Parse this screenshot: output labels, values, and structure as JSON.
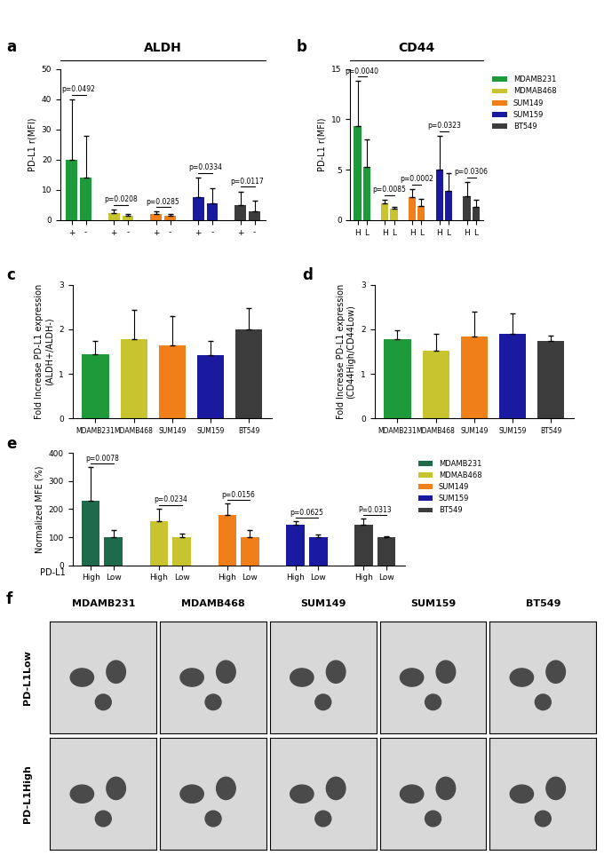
{
  "chart_data": [
    {
      "type": "bar",
      "panel": "a",
      "title": "ALDH",
      "y_label": "PD-L1 r(MFI)",
      "categories": [
        "+",
        "-"
      ],
      "series": [
        {
          "color": "#1f9a3a",
          "values": [
            20,
            14
          ],
          "errors": [
            20,
            14
          ]
        },
        {
          "color": "#c8c430",
          "values": [
            2.2,
            1.3
          ],
          "errors": [
            1.2,
            0.8
          ]
        },
        {
          "color": "#f07f1a",
          "values": [
            2.0,
            1.3
          ],
          "errors": [
            0.8,
            0.6
          ]
        },
        {
          "color": "#1a1aa0",
          "values": [
            7.5,
            5.5
          ],
          "errors": [
            6.5,
            5
          ]
        },
        {
          "color": "#3c3c3c",
          "values": [
            5,
            3
          ],
          "errors": [
            4.5,
            3.5
          ]
        }
      ],
      "annotations": [
        "p=0.0492",
        "p=0.0208",
        "p=0.0285",
        "p=0.0334",
        "p=0.0117"
      ],
      "ylim": [
        0,
        50
      ],
      "yticks": [
        0,
        10,
        20,
        30,
        40,
        50
      ]
    },
    {
      "type": "bar",
      "panel": "b",
      "title": "CD44",
      "y_label": "PD-L1 r(MFI)",
      "categories": [
        "H",
        "L"
      ],
      "series": [
        {
          "name": "MDAMB231",
          "color": "#1f9a3a",
          "values": [
            9.3,
            5.3
          ],
          "errors": [
            4.5,
            2.7
          ]
        },
        {
          "name": "MDMAB468",
          "color": "#c8c430",
          "values": [
            1.7,
            1.1
          ],
          "errors": [
            0.3,
            0.2
          ]
        },
        {
          "name": "SUM149",
          "color": "#f07f1a",
          "values": [
            2.3,
            1.4
          ],
          "errors": [
            0.8,
            0.7
          ]
        },
        {
          "name": "SUM159",
          "color": "#1a1aa0",
          "values": [
            5,
            2.9
          ],
          "errors": [
            3.4,
            1.8
          ]
        },
        {
          "name": "BT549",
          "color": "#3c3c3c",
          "values": [
            2.4,
            1.3
          ],
          "errors": [
            1.4,
            0.7
          ]
        }
      ],
      "annotations": [
        "p=0.0040",
        "p=0.0085",
        "p=0.0002",
        "p=0.0323",
        "p=0.0306"
      ],
      "legend": "upper left",
      "ylim": [
        0,
        15
      ],
      "yticks": [
        0,
        5,
        10,
        15
      ]
    },
    {
      "type": "bar",
      "panel": "c",
      "y_label": "Fold Increase PD-L1 expression\n(ALDH+/ALDH-)",
      "categories": [
        "MDAMB231",
        "MDAMB468",
        "SUM149",
        "SUM159",
        "BT549"
      ],
      "values": [
        1.45,
        1.78,
        1.65,
        1.42,
        2.0
      ],
      "errors": [
        0.3,
        0.65,
        0.65,
        0.32,
        0.48
      ],
      "colors": [
        "#1f9a3a",
        "#c8c430",
        "#f07f1a",
        "#1a1aa0",
        "#3c3c3c"
      ],
      "ylim": [
        0,
        3
      ],
      "yticks": [
        0,
        1,
        2,
        3
      ]
    },
    {
      "type": "bar",
      "panel": "d",
      "y_label": "Fold Increase PD-L1 expression\n(CD44High/CD44Low)",
      "categories": [
        "MDAMB231",
        "MDAMB468",
        "SUM149",
        "SUM159",
        "BT549"
      ],
      "values": [
        1.78,
        1.52,
        1.85,
        1.9,
        1.75
      ],
      "errors": [
        0.2,
        0.38,
        0.55,
        0.45,
        0.12
      ],
      "colors": [
        "#1f9a3a",
        "#c8c430",
        "#f07f1a",
        "#1a1aa0",
        "#3c3c3c"
      ],
      "ylim": [
        0,
        3
      ],
      "yticks": [
        0,
        1,
        2,
        3
      ]
    },
    {
      "type": "bar",
      "panel": "e",
      "y_label": "Normalized MFE (%)",
      "x_label": "PD-L1",
      "categories": [
        "High",
        "Low"
      ],
      "series": [
        {
          "name": "MDAMB231",
          "color": "#1d6b4a",
          "values": [
            230,
            100
          ],
          "errors": [
            120,
            25
          ]
        },
        {
          "name": "MDMAB468",
          "color": "#c8c430",
          "values": [
            158,
            100
          ],
          "errors": [
            45,
            12
          ]
        },
        {
          "name": "SUM149",
          "color": "#f07f1a",
          "values": [
            178,
            100
          ],
          "errors": [
            42,
            25
          ]
        },
        {
          "name": "SUM159",
          "color": "#1a1aa0",
          "values": [
            143,
            100
          ],
          "errors": [
            15,
            10
          ]
        },
        {
          "name": "BT549",
          "color": "#3c3c3c",
          "values": [
            145,
            100
          ],
          "errors": [
            22,
            3
          ]
        }
      ],
      "annotations": [
        "p=0.0078",
        "p=0.0234",
        "p=0.0156",
        "p=0.0625",
        "P=0.0313"
      ],
      "legend": "upper left",
      "ylim": [
        0,
        400
      ],
      "yticks": [
        0,
        100,
        200,
        300,
        400
      ]
    }
  ],
  "image_grid": {
    "panel": "f",
    "columns": [
      "MDAMB231",
      "MDAMB468",
      "SUM149",
      "SUM159",
      "BT549"
    ],
    "rows": [
      "PD-L1Low",
      "PD-L1High"
    ]
  }
}
